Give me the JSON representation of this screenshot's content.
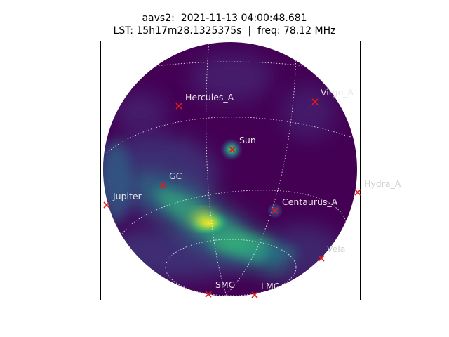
{
  "title": {
    "line1": "aavs2:  2021-11-13 04:00:48.681",
    "line2": "LST: 15h17m28.1325375s  |  freq: 78.12 MHz"
  },
  "colors": {
    "marker": "#e41a1a",
    "label_inside": "#e6e6e6",
    "label_outside": "#cfcfcf",
    "grid": "#ffffff",
    "sky_base": "#440154",
    "bright": "#fde725",
    "mid": "#35b779",
    "teal": "#21918c",
    "blue": "#3b528b"
  },
  "sources": [
    {
      "name": "Hercules_A"
    },
    {
      "name": "Virgo_A"
    },
    {
      "name": "Sun"
    },
    {
      "name": "GC"
    },
    {
      "name": "Hydra_A"
    },
    {
      "name": "Jupiter"
    },
    {
      "name": "Centaurus_A"
    },
    {
      "name": "Vela"
    },
    {
      "name": "SMC"
    },
    {
      "name": "LMC"
    }
  ]
}
